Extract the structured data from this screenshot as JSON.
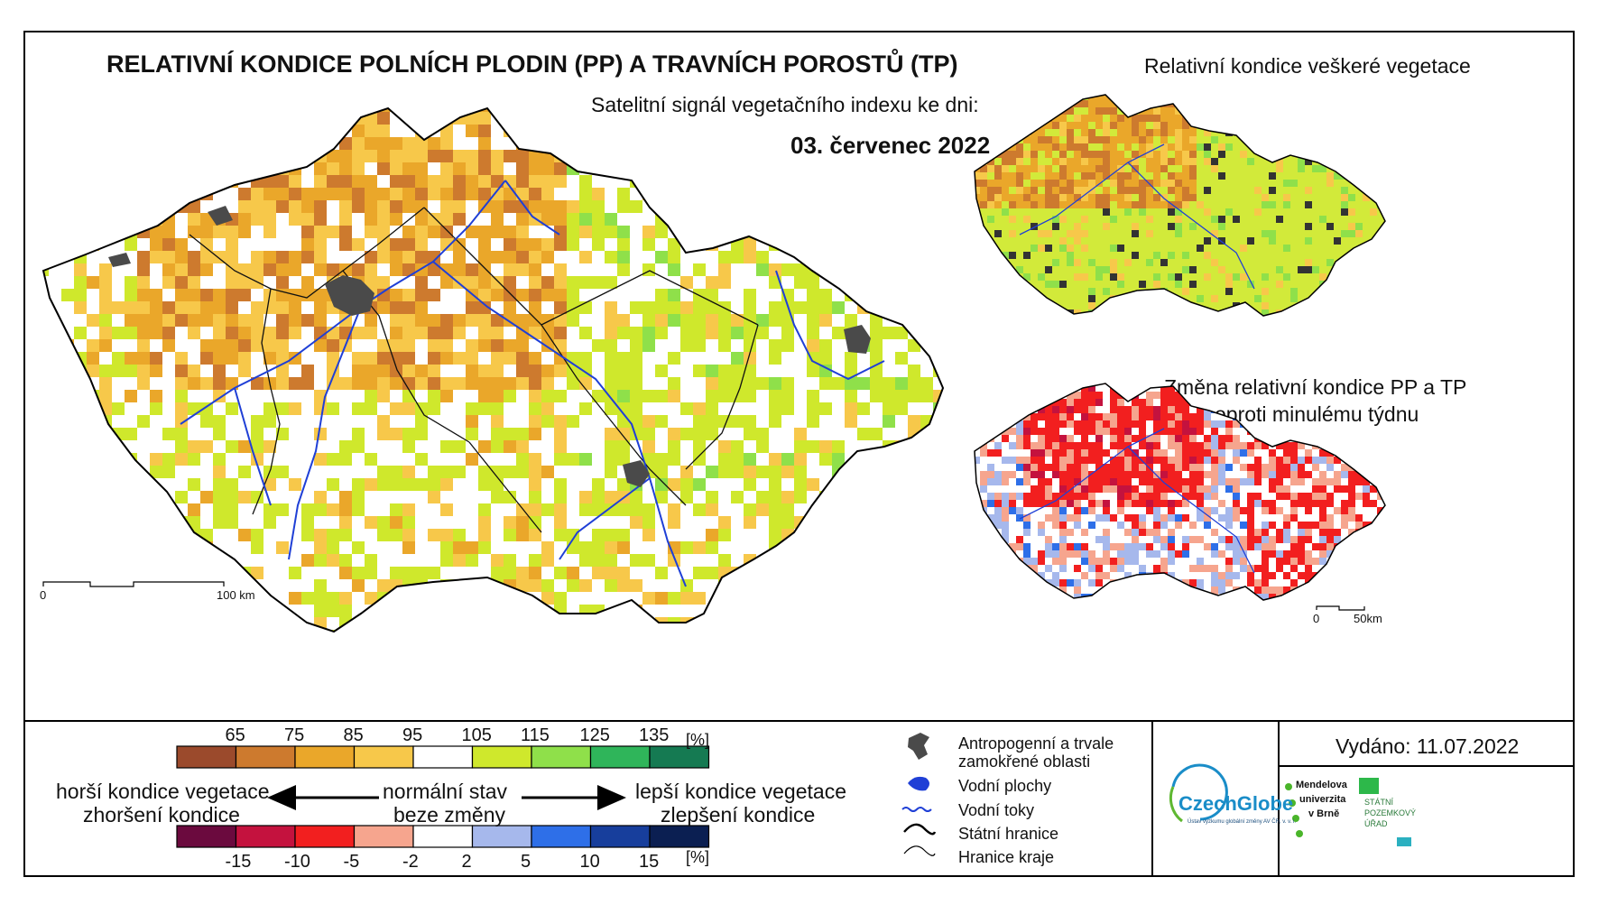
{
  "title": "RELATIVNÍ KONDICE POLNÍCH PLODIN (PP) A TRAVNÍCH POROSTŮ (TP)",
  "subtitle": "Satelitní signál vegetačního indexu ke dni:",
  "date": "03. červenec 2022",
  "inset_top_title": "Relativní kondice veškeré vegetace",
  "inset_bottom_title_1": "Změna relativní kondice PP a TP",
  "inset_bottom_title_2": "oproti minulému týdnu",
  "main_scale": {
    "start": "0",
    "end": "100 km"
  },
  "inset_scale": {
    "start": "0",
    "end": "50km"
  },
  "condition_legend": {
    "ticks": [
      "65",
      "75",
      "85",
      "95",
      "105",
      "115",
      "125",
      "135"
    ],
    "unit": "[%]",
    "colors": [
      "#9b4a2c",
      "#cd7a2e",
      "#eaa72a",
      "#f7c84a",
      "#ffffff",
      "#cfe82c",
      "#8fe04a",
      "#2fb55a",
      "#157a52"
    ]
  },
  "change_legend": {
    "ticks": [
      "-15",
      "-10",
      "-5",
      "-2",
      "2",
      "5",
      "10",
      "15"
    ],
    "unit": "[%]",
    "colors": [
      "#6b0a3e",
      "#c4123e",
      "#f21f1f",
      "#f6a58e",
      "#ffffff",
      "#a6b8ec",
      "#2e6fe8",
      "#173e9c",
      "#0b1f52"
    ]
  },
  "arrow_labels": {
    "worse_1": "horší kondice vegetace",
    "worse_2": "zhoršení kondice",
    "normal_1": "normální stav",
    "normal_2": "beze změny",
    "better_1": "lepší kondice vegetace",
    "better_2": "zlepšení kondice"
  },
  "map_legend": {
    "anthropogenic_1": "Antropogenní a trvale",
    "anthropogenic_2": "zamokřené oblasti",
    "water_bodies": "Vodní plochy",
    "water_streams": "Vodní toky",
    "state_border": "Státní hranice",
    "region_border": "Hranice kraje"
  },
  "issued": "Vydáno: 11.07.2022",
  "logos": {
    "czechglobe": "CzechGlobe",
    "czechglobe_sub": "Ústav výzkumu globální změny AV ČR, v. v. i.",
    "mendel_1": "Mendelova",
    "mendel_2": "univerzita",
    "mendel_3": "v Brně",
    "spu_1": "STÁTNÍ",
    "spu_2": "POZEMKOVÝ",
    "spu_3": "ÚŘAD"
  },
  "colors": {
    "border": "#000000",
    "river": "#1f3fd6",
    "anthropogenic": "#4a4a4a"
  }
}
